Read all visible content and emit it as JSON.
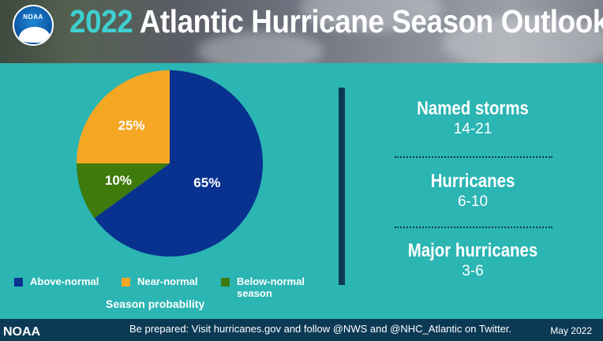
{
  "header": {
    "title_year": "2022",
    "title_rest": "Atlantic Hurricane Season Outlook",
    "logo_text": "NOAA"
  },
  "chart_data": {
    "type": "pie",
    "title": "",
    "caption": "Season probability",
    "slices": [
      {
        "name": "Above-normal",
        "value": 65,
        "label": "65%",
        "color": "#083190"
      },
      {
        "name": "Below-normal season",
        "value": 10,
        "label": "10%",
        "color": "#3f7a0d"
      },
      {
        "name": "Near-normal",
        "value": 25,
        "label": "25%",
        "color": "#f5a623"
      }
    ],
    "legend": [
      {
        "name": "Above-normal",
        "color": "#083190"
      },
      {
        "name": "Near-normal",
        "color": "#f5a623"
      },
      {
        "name": "Below-normal season",
        "color": "#3f7a0d"
      }
    ],
    "legend_position": "bottom"
  },
  "stats": [
    {
      "label": "Named storms",
      "value": "14-21"
    },
    {
      "label": "Hurricanes",
      "value": "6-10"
    },
    {
      "label": "Major hurricanes",
      "value": "3-6"
    }
  ],
  "footer": {
    "org": "NOAA",
    "message": "Be prepared: Visit hurricanes.gov and follow @NWS and @NHC_Atlantic on Twitter.",
    "date": "May 2022"
  },
  "colors": {
    "background": "#2bb5b3",
    "accent_dark": "#0c3a55",
    "title_year": "#3fd0d0"
  }
}
